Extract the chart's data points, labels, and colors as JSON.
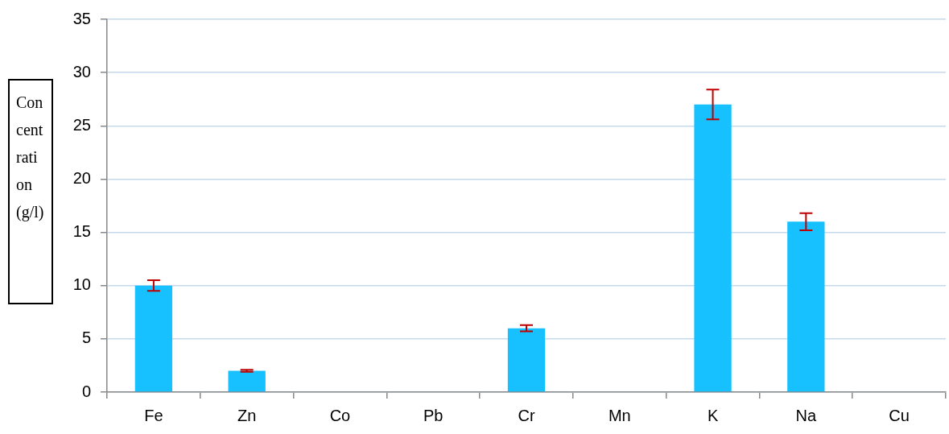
{
  "chart_data": {
    "type": "bar",
    "ylabel": "Concentration (g/l)",
    "categories": [
      "Fe",
      "Zn",
      "Co",
      "Pb",
      "Cr",
      "Mn",
      "K",
      "Na",
      "Cu"
    ],
    "values": [
      10,
      2,
      0,
      0,
      6,
      0,
      27,
      16,
      0
    ],
    "errors": [
      0.5,
      0.1,
      null,
      null,
      0.3,
      null,
      1.4,
      0.8,
      null
    ],
    "color": "#17c0fe",
    "ylim": [
      0,
      35
    ],
    "yticks": [
      0,
      5,
      10,
      15,
      20,
      25,
      30,
      35
    ],
    "grid": "y",
    "legend": false
  }
}
